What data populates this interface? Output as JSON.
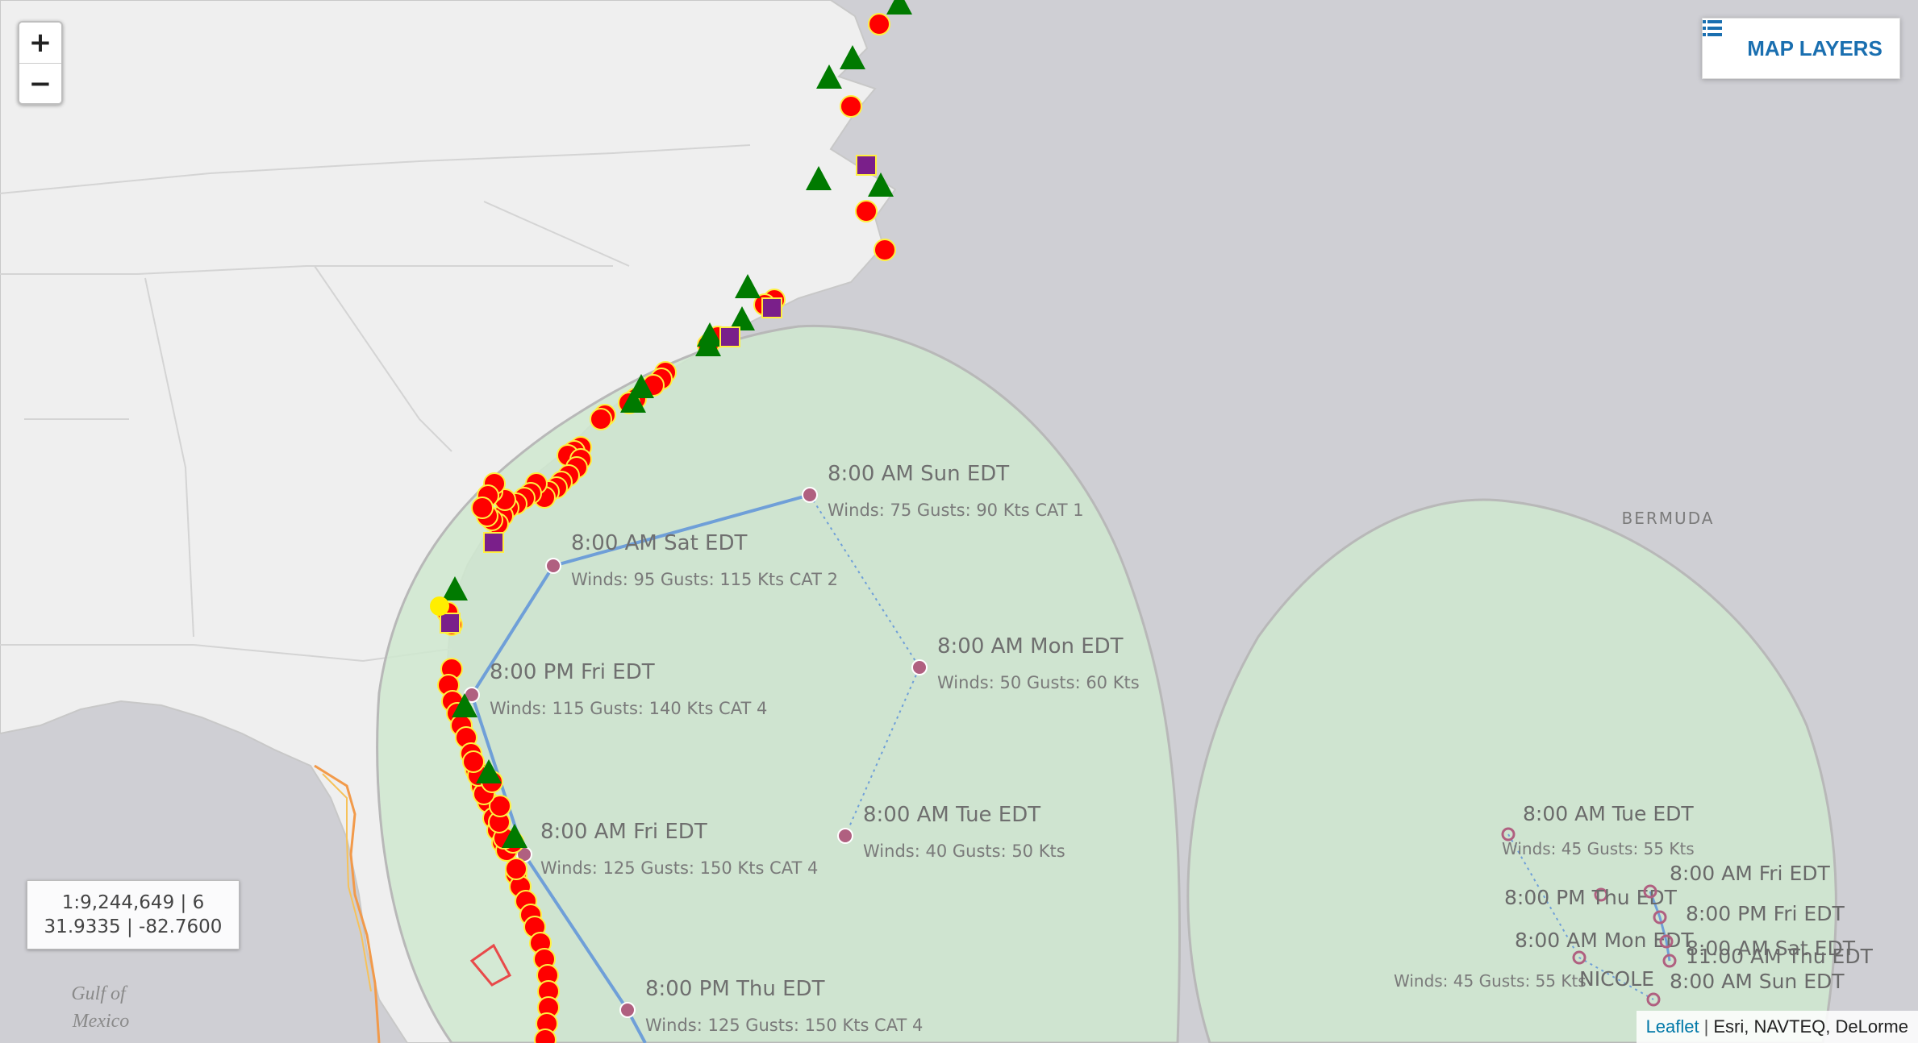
{
  "zoom": {
    "in_label": "+",
    "out_label": "−"
  },
  "layers_button": {
    "label": "MAP LAYERS",
    "icon": "list-icon",
    "color": "#1a6fb0"
  },
  "scale_readout": {
    "scale_zoom": "1:9,244,649 | 6",
    "coords": "31.9335 | -82.7600"
  },
  "attribution": {
    "leaflet_label": "Leaflet",
    "sources": "Esri, NAVTEQ, DeLorme"
  },
  "map_labels": {
    "water": "Gulf of\nMexico",
    "island": "BERMUDA"
  },
  "colors": {
    "ocean": "#cfcfd4",
    "land": "#efefef",
    "cone": "#cfe8cf",
    "warning_marker": "#ff0000",
    "watch_marker": "#007a00",
    "surge_marker": "#7a1f8a",
    "track_line": "#6f9fd8",
    "track_point": "#b06080"
  },
  "storms": [
    {
      "track_points": [
        {
          "time": "8:00 PM Thu EDT",
          "winds": "Winds: 125 Gusts: 150 Kts CAT 4"
        },
        {
          "time": "8:00 AM Fri EDT",
          "winds": "Winds: 125 Gusts: 150 Kts CAT 4"
        },
        {
          "time": "8:00 PM Fri EDT",
          "winds": "Winds: 115 Gusts: 140 Kts CAT 4"
        },
        {
          "time": "8:00 AM Sat EDT",
          "winds": "Winds: 95 Gusts: 115 Kts CAT 2"
        },
        {
          "time": "8:00 AM Sun EDT",
          "winds": "Winds: 75 Gusts: 90 Kts CAT 1"
        },
        {
          "time": "8:00 AM Mon EDT",
          "winds": "Winds: 50 Gusts: 60 Kts"
        },
        {
          "time": "8:00 AM Tue EDT",
          "winds": "Winds: 40 Gusts: 50 Kts"
        }
      ]
    },
    {
      "name": "NICOLE",
      "track_points": [
        {
          "time": "8:00 AM Tue EDT",
          "winds": "Winds: 45 Gusts: 55 Kts"
        },
        {
          "time": "8:00 PM Thu EDT",
          "winds": ""
        },
        {
          "time": "8:00 AM Mon EDT",
          "winds": "Winds: 45 Gusts: 55 Kts"
        },
        {
          "time": "8:00 AM Fri EDT",
          "winds": ""
        },
        {
          "time": "8:00 PM Fri EDT",
          "winds": ""
        },
        {
          "time": "8:00 AM Sat EDT",
          "winds": ""
        },
        {
          "time": "11:00 AM Thu EDT",
          "winds": ""
        },
        {
          "time": "8:00 AM Sun EDT",
          "winds": ""
        }
      ]
    }
  ]
}
